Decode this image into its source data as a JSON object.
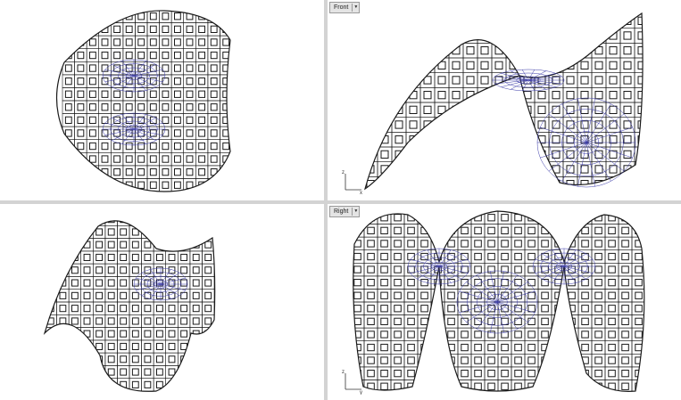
{
  "viewports": {
    "top_left": {
      "title": ""
    },
    "top_right": {
      "title": "Front",
      "axis_up": "z",
      "axis_right": "x"
    },
    "bottom_left": {
      "title": ""
    },
    "bottom_right": {
      "title": "Right",
      "axis_up": "z",
      "axis_right": "y"
    }
  },
  "icons": {
    "dropdown": "chevron-down-icon"
  },
  "colors": {
    "wire": "#1a1a1a",
    "blue_wire": "#3a3aa8",
    "divider": "#d3d3d3"
  }
}
